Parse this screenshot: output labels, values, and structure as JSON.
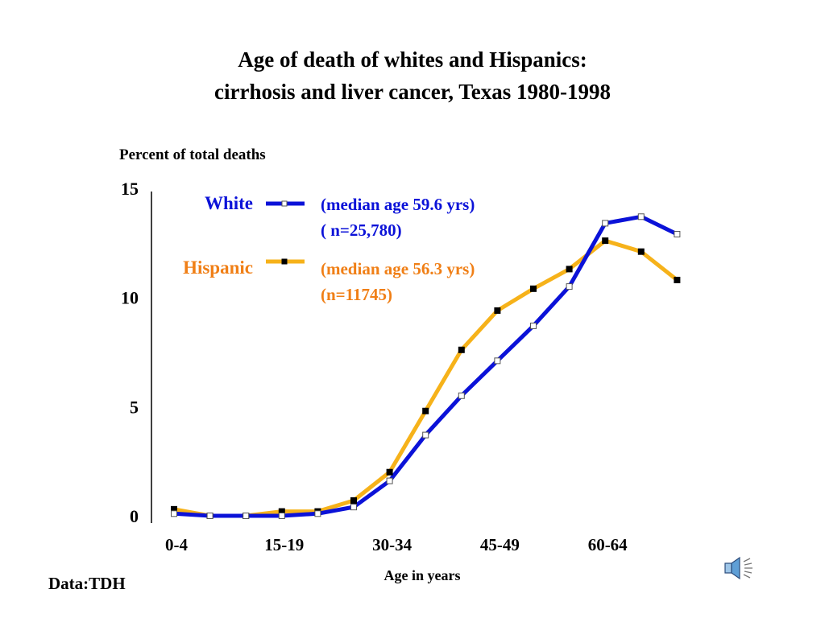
{
  "title_line1": "Age of death of whites and Hispanics:",
  "title_line2": "cirrhosis and liver cancer, Texas 1980-1998",
  "source": "Data:TDH",
  "legend": {
    "white_label": "White",
    "white_note_1": "(median age 59.6 yrs)",
    "white_note_2": "( n=25,780)",
    "hispanic_label": "Hispanic",
    "hispanic_note_1": "(median age 56.3 yrs)",
    "hispanic_note_2": "(n=11745)"
  },
  "colors": {
    "white": "#0b12d8",
    "hispanic": "#f6b21a",
    "hispanic_legend_text": "#f07f16",
    "axis": "#000000"
  },
  "icons": {
    "speaker": "speaker-icon"
  },
  "chart_data": {
    "type": "line",
    "title": "Age of death of whites and Hispanics: cirrhosis and liver cancer, Texas 1980-1998",
    "ylabel": "Percent of total deaths",
    "xlabel": "Age in years",
    "ylim": [
      0,
      15
    ],
    "yticks": [
      0,
      5,
      10,
      15
    ],
    "x": [
      "0-4",
      "5-9",
      "10-14",
      "15-19",
      "20-24",
      "25-29",
      "30-34",
      "35-39",
      "40-44",
      "45-49",
      "50-54",
      "55-59",
      "60-64",
      "65-69",
      "70-74"
    ],
    "xtick_labels_shown": [
      "0-4",
      "15-19",
      "30-34",
      "45-49",
      "60-64"
    ],
    "grid": false,
    "legend_position": "top-left",
    "series": [
      {
        "name": "White",
        "values": [
          0.1,
          0.0,
          0.0,
          0.0,
          0.1,
          0.4,
          1.6,
          3.7,
          5.5,
          7.1,
          8.7,
          10.5,
          13.4,
          13.7,
          12.9
        ]
      },
      {
        "name": "Hispanic",
        "values": [
          0.3,
          0.0,
          0.0,
          0.2,
          0.2,
          0.7,
          2.0,
          4.8,
          7.6,
          9.4,
          10.4,
          11.3,
          12.6,
          12.1,
          10.8
        ]
      }
    ]
  }
}
